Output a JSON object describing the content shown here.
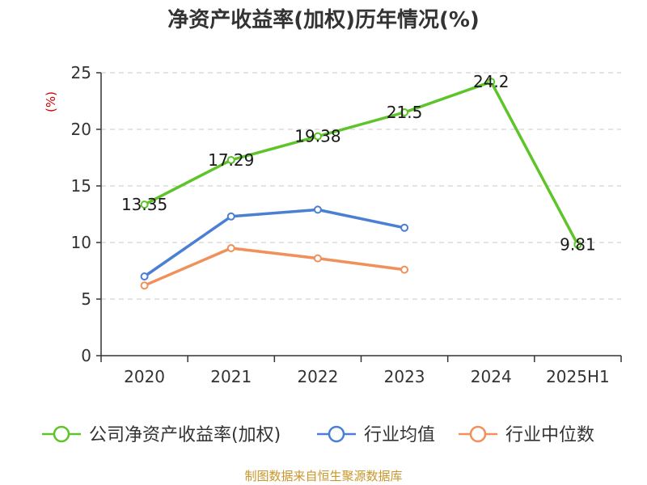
{
  "chart_data": {
    "type": "line",
    "title": "净资产收益率(加权)历年情况(%)",
    "ylabel": "(%)",
    "xlabel": "",
    "categories": [
      "2020",
      "2021",
      "2022",
      "2023",
      "2024",
      "2025H1"
    ],
    "ylim": [
      0,
      25
    ],
    "yticks": [
      0,
      5,
      10,
      15,
      20,
      25
    ],
    "grid": true,
    "legend_position": "bottom",
    "series": [
      {
        "name": "公司净资产收益率(加权)",
        "color": "#5ec42a",
        "values": [
          13.35,
          17.29,
          19.38,
          21.5,
          24.2,
          9.81
        ],
        "labels": [
          "13.35",
          "17.29",
          "19.38",
          "21.5",
          "24.2",
          "9.81"
        ]
      },
      {
        "name": "行业均值",
        "color": "#4a7fd4",
        "values": [
          7.0,
          12.3,
          12.9,
          11.3,
          null,
          null
        ]
      },
      {
        "name": "行业中位数",
        "color": "#f0905a",
        "values": [
          6.2,
          9.5,
          8.6,
          7.6,
          null,
          null
        ]
      }
    ]
  },
  "source_text": "制图数据来自恒生聚源数据库"
}
